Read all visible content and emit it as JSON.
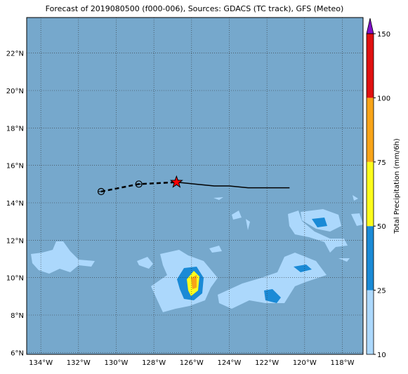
{
  "map": {
    "title": "Forecast of 2019080500 (f000-006), Sources: GDACS (TC track), GFS (Meteo)",
    "xlim": [
      -134.75,
      -116.9
    ],
    "ylim": [
      5.9,
      23.9
    ],
    "xticks": [
      {
        "value": -134,
        "label": "134°W"
      },
      {
        "value": -132,
        "label": "132°W"
      },
      {
        "value": -130,
        "label": "130°W"
      },
      {
        "value": -128,
        "label": "128°W"
      },
      {
        "value": -126,
        "label": "126°W"
      },
      {
        "value": -124,
        "label": "124°W"
      },
      {
        "value": -122,
        "label": "122°W"
      },
      {
        "value": -120,
        "label": "120°W"
      },
      {
        "value": -118,
        "label": "118°W"
      }
    ],
    "yticks": [
      {
        "value": 6,
        "label": "6°N"
      },
      {
        "value": 8,
        "label": "8°N"
      },
      {
        "value": 10,
        "label": "10°N"
      },
      {
        "value": 12,
        "label": "12°N"
      },
      {
        "value": 14,
        "label": "14°N"
      },
      {
        "value": 16,
        "label": "16°N"
      },
      {
        "value": 18,
        "label": "18°N"
      },
      {
        "value": 20,
        "label": "20°N"
      },
      {
        "value": 22,
        "label": "22°N"
      }
    ],
    "past_track": {
      "lon": [
        -130.8,
        -128.8,
        -126.8
      ],
      "lat": [
        14.6,
        15.0,
        15.1
      ]
    },
    "forecast_track": {
      "lon": [
        -126.8,
        -125.8,
        -124.8,
        -124.0,
        -123.0,
        -120.8
      ],
      "lat": [
        15.1,
        15.0,
        14.9,
        14.9,
        14.8,
        14.8
      ]
    },
    "colorbar": {
      "label": "Total Precipitation (mm/6h)",
      "levels": [
        10,
        25,
        50,
        75,
        100,
        150
      ],
      "colors": [
        "#acd8fc",
        "#1a8ad6",
        "#fcfc1c",
        "#f8a418",
        "#e01010"
      ],
      "extend_color": "#8010c8"
    }
  }
}
